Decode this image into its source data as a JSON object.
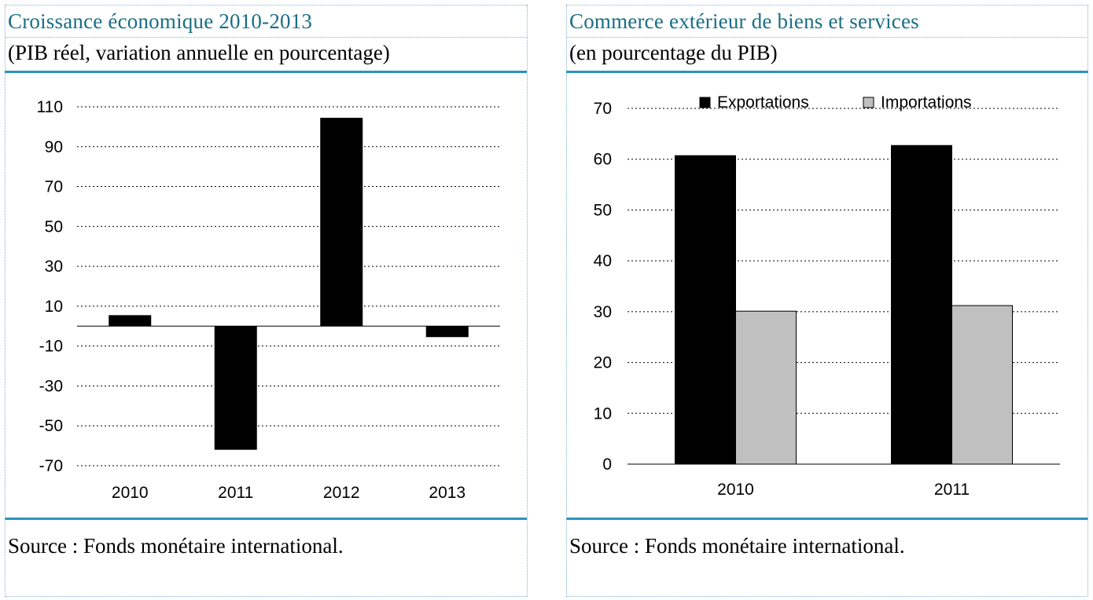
{
  "left_panel": {
    "title": "Croissance économique 2010-2013",
    "subtitle": "(PIB réel, variation annuelle en pourcentage)",
    "source": "Source : Fonds monétaire international."
  },
  "right_panel": {
    "title": "Commerce extérieur de biens et services",
    "subtitle": "(en pourcentage du PIB)",
    "source": "Source :  Fonds monétaire international."
  },
  "colors": {
    "accent": "#2a93b8",
    "title": "#1a6e86",
    "bar_dark": "#000000",
    "bar_light": "#c0c0c0"
  },
  "chart_data": [
    {
      "type": "bar",
      "title": "Croissance économique 2010-2013",
      "categories": [
        "2010",
        "2011",
        "2012",
        "2013"
      ],
      "values": [
        5.5,
        -62,
        104.5,
        -5.5
      ],
      "yticks": [
        "110",
        "90",
        "70",
        "50",
        "30",
        "10",
        "-10",
        "-30",
        "-50",
        "-70"
      ],
      "ytick_values": [
        110,
        90,
        70,
        50,
        30,
        10,
        -10,
        -30,
        -50,
        -70
      ],
      "ylim": [
        -70,
        110
      ],
      "grid": true
    },
    {
      "type": "bar",
      "title": "Commerce extérieur de biens et services",
      "categories": [
        "2010",
        "2011"
      ],
      "series": [
        {
          "name": "Exportations",
          "values": [
            60.7,
            62.7
          ],
          "color": "#000000"
        },
        {
          "name": "Importations",
          "values": [
            30.1,
            31.2
          ],
          "color": "#c0c0c0"
        }
      ],
      "yticks": [
        "70",
        "60",
        "50",
        "40",
        "30",
        "20",
        "10",
        "0"
      ],
      "ytick_values": [
        70,
        60,
        50,
        40,
        30,
        20,
        10,
        0
      ],
      "ylim": [
        0,
        70
      ],
      "grid": true,
      "legend": "top"
    }
  ]
}
